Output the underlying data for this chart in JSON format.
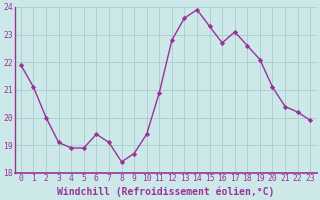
{
  "x": [
    0,
    1,
    2,
    3,
    4,
    5,
    6,
    7,
    8,
    9,
    10,
    11,
    12,
    13,
    14,
    15,
    16,
    17,
    18,
    19,
    20,
    21,
    22,
    23
  ],
  "y": [
    21.9,
    21.1,
    20.0,
    19.1,
    18.9,
    18.9,
    19.4,
    19.1,
    18.4,
    18.7,
    19.4,
    20.9,
    22.8,
    23.6,
    23.9,
    23.3,
    22.7,
    23.1,
    22.6,
    22.1,
    21.1,
    20.4,
    20.2,
    19.9
  ],
  "line_color": "#993399",
  "marker": "D",
  "marker_size": 2.2,
  "bg_color": "#cce8e8",
  "plot_bg_color": "#cce8e8",
  "grid_color": "#aacccc",
  "xlabel": "Windchill (Refroidissement éolien,°C)",
  "ylim": [
    18,
    24
  ],
  "xlim": [
    -0.5,
    23.5
  ],
  "yticks": [
    18,
    19,
    20,
    21,
    22,
    23,
    24
  ],
  "xticks": [
    0,
    1,
    2,
    3,
    4,
    5,
    6,
    7,
    8,
    9,
    10,
    11,
    12,
    13,
    14,
    15,
    16,
    17,
    18,
    19,
    20,
    21,
    22,
    23
  ],
  "tick_label_fontsize": 5.8,
  "xlabel_fontsize": 7.0,
  "line_width": 1.0,
  "axis_color": "#993399",
  "spine_color": "#993399"
}
